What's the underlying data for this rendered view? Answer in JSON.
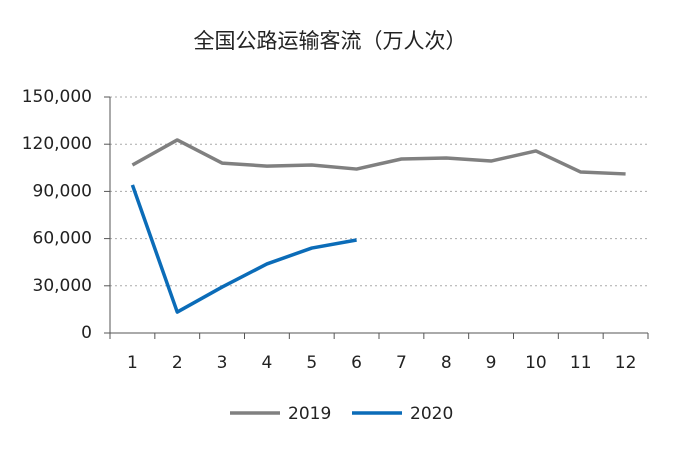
{
  "chart_data": {
    "type": "line",
    "title": "全国公路运输客流（万人次）",
    "categories": [
      "1",
      "2",
      "3",
      "4",
      "5",
      "6",
      "7",
      "8",
      "9",
      "10",
      "11",
      "12"
    ],
    "series": [
      {
        "name": "2019",
        "color": "#808080",
        "values": [
          106800,
          122700,
          108000,
          106100,
          106800,
          104200,
          110600,
          111200,
          109300,
          115700,
          102300,
          101100
        ]
      },
      {
        "name": "2020",
        "color": "#0b6cb8",
        "values": [
          94100,
          13300,
          29200,
          43900,
          54000,
          59100,
          null,
          null,
          null,
          null,
          null,
          null
        ]
      }
    ],
    "ylim": [
      0,
      150000
    ],
    "yticks": [
      0,
      {
        "value": 30000,
        "label": "30,000"
      },
      {
        "value": 60000,
        "label": "60,000"
      },
      {
        "value": 90000,
        "label": "90,000"
      },
      {
        "value": 120000,
        "label": "120,000"
      },
      {
        "value": 150000,
        "label": "150,000"
      }
    ],
    "grid": true,
    "legend": "bottom"
  }
}
